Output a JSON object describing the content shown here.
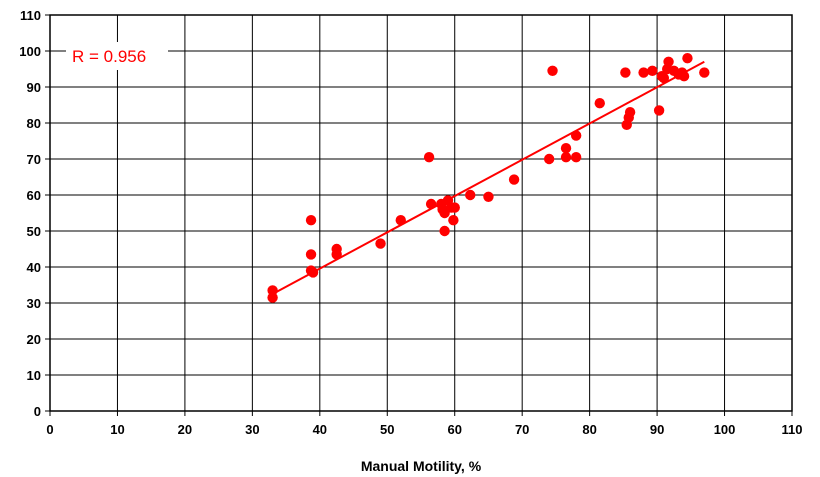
{
  "chart_data": {
    "type": "scatter",
    "title": "",
    "xlabel": "Manual Motility, %",
    "ylabel": "",
    "xlim": [
      0,
      110
    ],
    "ylim": [
      0,
      110
    ],
    "x_ticks": [
      "0",
      "10",
      "20",
      "30",
      "40",
      "50",
      "60",
      "70",
      "80",
      "90",
      "100",
      "110"
    ],
    "y_ticks": [
      "0",
      "10",
      "20",
      "30",
      "40",
      "50",
      "60",
      "70",
      "80",
      "90",
      "100",
      "110"
    ],
    "grid": true,
    "legend": "none",
    "annotation": "R = 0.956",
    "colors": {
      "points": "#ff0000",
      "trendline": "#ff0000",
      "annotation": "#ff0000",
      "grid": "#000000"
    },
    "trendline": {
      "x": [
        33,
        97
      ],
      "y": [
        32.5,
        97
      ]
    },
    "series": [
      {
        "points": [
          [
            33,
            33.5
          ],
          [
            33,
            31.5
          ],
          [
            38.7,
            53
          ],
          [
            38.7,
            43.5
          ],
          [
            38.7,
            39
          ],
          [
            39,
            38.5
          ],
          [
            42.5,
            45
          ],
          [
            42.5,
            43.5
          ],
          [
            49,
            46.5
          ],
          [
            52,
            53
          ],
          [
            56.2,
            70.5
          ],
          [
            56.5,
            57.5
          ],
          [
            58,
            57.5
          ],
          [
            58.2,
            56
          ],
          [
            58.5,
            50
          ],
          [
            58.5,
            55
          ],
          [
            59,
            58.5
          ],
          [
            59.5,
            56.5
          ],
          [
            59.8,
            53
          ],
          [
            60,
            56.5
          ],
          [
            62.3,
            60
          ],
          [
            65,
            59.5
          ],
          [
            68.8,
            64.3
          ],
          [
            74,
            70
          ],
          [
            74.5,
            94.5
          ],
          [
            76.5,
            73
          ],
          [
            76.5,
            70.5
          ],
          [
            78,
            76.5
          ],
          [
            78,
            70.5
          ],
          [
            81.5,
            85.5
          ],
          [
            85.3,
            94
          ],
          [
            85.5,
            79.5
          ],
          [
            85.8,
            81.5
          ],
          [
            86,
            83
          ],
          [
            88,
            94
          ],
          [
            89.3,
            94.5
          ],
          [
            90.3,
            83.5
          ],
          [
            90.7,
            93
          ],
          [
            91,
            92.5
          ],
          [
            91.5,
            95
          ],
          [
            91.7,
            97
          ],
          [
            92.5,
            94.5
          ],
          [
            93.2,
            93.5
          ],
          [
            93.7,
            94
          ],
          [
            94,
            93
          ],
          [
            94.5,
            98
          ],
          [
            97,
            94
          ]
        ]
      }
    ]
  }
}
